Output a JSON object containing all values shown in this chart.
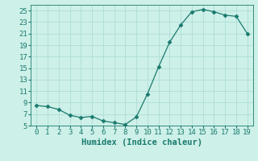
{
  "x": [
    0,
    1,
    2,
    3,
    4,
    5,
    6,
    7,
    8,
    9,
    10,
    11,
    12,
    13,
    14,
    15,
    16,
    17,
    18,
    19
  ],
  "y": [
    8.5,
    8.3,
    7.8,
    6.8,
    6.4,
    6.6,
    5.8,
    5.5,
    5.2,
    6.5,
    10.5,
    15.2,
    19.5,
    22.5,
    24.8,
    25.2,
    24.8,
    24.2,
    24.0,
    21.0
  ],
  "line_color": "#1a7a6e",
  "marker": "D",
  "marker_size": 2.5,
  "bg_color": "#cdf0e8",
  "grid_color": "#aeddd6",
  "xlabel": "Humidex (Indice chaleur)",
  "ylim": [
    5,
    26
  ],
  "xlim": [
    -0.5,
    19.5
  ],
  "yticks": [
    5,
    7,
    9,
    11,
    13,
    15,
    17,
    19,
    21,
    23,
    25
  ],
  "xticks": [
    0,
    1,
    2,
    3,
    4,
    5,
    6,
    7,
    8,
    9,
    10,
    11,
    12,
    13,
    14,
    15,
    16,
    17,
    18,
    19
  ],
  "tick_fontsize": 6.5,
  "xlabel_fontsize": 7.5
}
